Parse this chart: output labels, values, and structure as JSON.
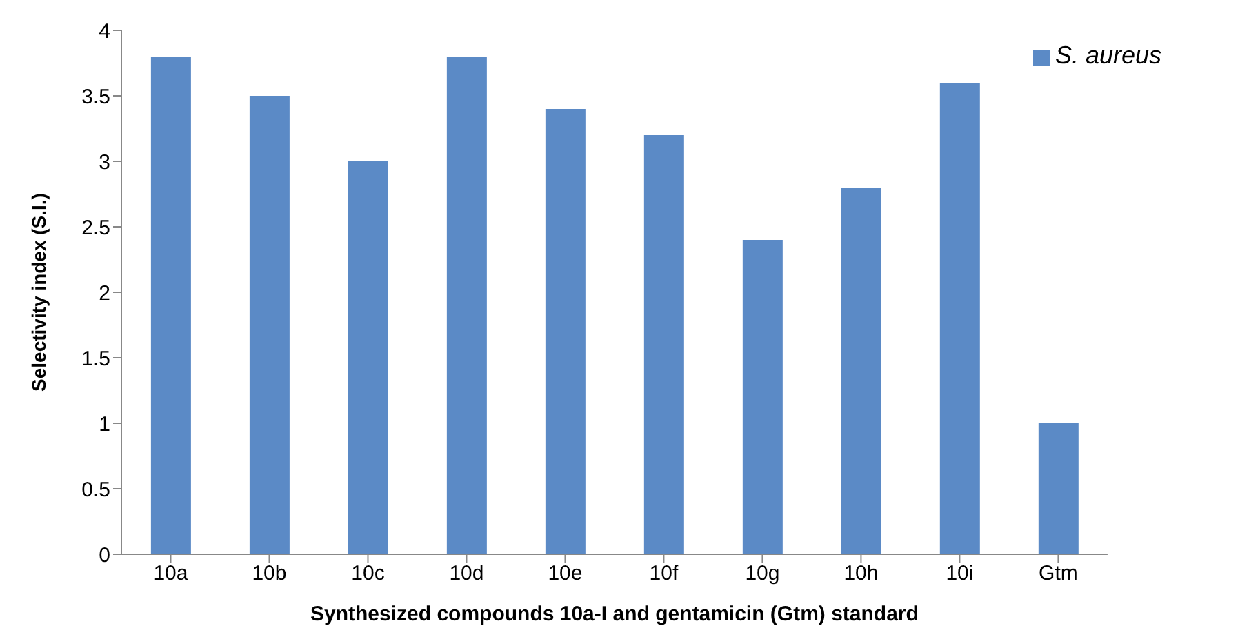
{
  "chart_data": {
    "type": "bar",
    "xlabel": "Synthesized compounds 10a-I and gentamicin (Gtm) standard",
    "ylabel": "Selectivity index (S.I.)",
    "categories": [
      "10a",
      "10b",
      "10c",
      "10d",
      "10e",
      "10f",
      "10g",
      "10h",
      "10i",
      "Gtm"
    ],
    "series": [
      {
        "name": "S. aureus",
        "color": "#5b8ac6",
        "values": [
          3.8,
          3.5,
          3.0,
          3.8,
          3.4,
          3.2,
          2.4,
          2.8,
          3.6,
          1.0
        ]
      }
    ],
    "ylim": [
      0,
      4
    ],
    "yticks": [
      0,
      0.5,
      1,
      1.5,
      2,
      2.5,
      3,
      3.5,
      4
    ],
    "grid": false,
    "legend": "top right"
  }
}
